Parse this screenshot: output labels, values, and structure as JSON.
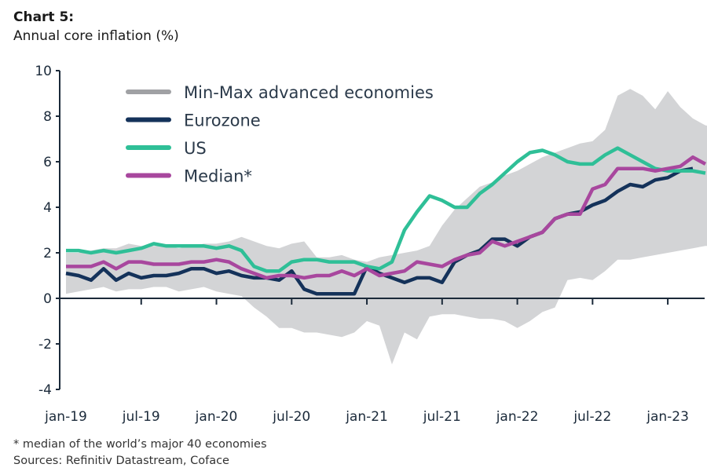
{
  "header": {
    "title": "Chart 5:",
    "subtitle": "Annual core inflation (%)"
  },
  "footer": {
    "note": "* median of the world’s major 40 economies",
    "sources": "Sources: Refinitiv Datastream, Coface"
  },
  "colors": {
    "band": "#d3d4d6",
    "eurozone": "#14325a",
    "us": "#2fbf97",
    "median": "#a8479e",
    "axis": "#1b2a3a"
  },
  "chart_data": {
    "type": "line",
    "title": "Annual core inflation (%)",
    "xlabel": "",
    "ylabel": "",
    "ylim": [
      -4,
      10
    ],
    "yticks": [
      10,
      8,
      6,
      4,
      2,
      0,
      -2,
      -4
    ],
    "xtick_labels": [
      "jan-19",
      "jul-19",
      "jan-20",
      "jul-20",
      "jan-21",
      "jul-21",
      "jan-22",
      "jul-22",
      "jan-23"
    ],
    "x_start": "jan-19",
    "frequency": "monthly",
    "legend": [
      "Min-Max advanced economies",
      "Eurozone",
      "US",
      "Median*"
    ],
    "legend_position": "top-left",
    "band": {
      "name": "Min-Max advanced economies",
      "max": [
        2.0,
        2.0,
        2.1,
        2.2,
        2.2,
        2.4,
        2.3,
        2.3,
        2.3,
        2.2,
        2.3,
        2.4,
        2.4,
        2.5,
        2.7,
        2.5,
        2.3,
        2.2,
        2.4,
        2.5,
        1.8,
        1.8,
        1.9,
        1.7,
        1.6,
        1.8,
        1.9,
        2.0,
        2.1,
        2.3,
        3.2,
        3.9,
        4.4,
        4.9,
        5.1,
        5.4,
        5.6,
        5.9,
        6.2,
        6.4,
        6.6,
        6.8,
        6.9,
        7.4,
        8.9,
        9.2,
        8.9,
        8.3,
        9.1,
        8.4,
        7.9,
        7.6,
        7.5
      ],
      "min": [
        0.2,
        0.3,
        0.4,
        0.5,
        0.3,
        0.4,
        0.4,
        0.5,
        0.5,
        0.3,
        0.4,
        0.5,
        0.3,
        0.2,
        0.1,
        -0.4,
        -0.8,
        -1.3,
        -1.3,
        -1.5,
        -1.5,
        -1.6,
        -1.7,
        -1.5,
        -1.0,
        -1.2,
        -2.9,
        -1.5,
        -1.8,
        -0.8,
        -0.7,
        -0.7,
        -0.8,
        -0.9,
        -0.9,
        -1.0,
        -1.3,
        -1.0,
        -0.6,
        -0.4,
        0.8,
        0.9,
        0.8,
        1.2,
        1.7,
        1.7,
        1.8,
        1.9,
        2.0,
        2.1,
        2.2,
        2.3,
        2.3
      ]
    },
    "series": [
      {
        "name": "Eurozone",
        "values": [
          1.1,
          1.0,
          0.8,
          1.3,
          0.8,
          1.1,
          0.9,
          1.0,
          1.0,
          1.1,
          1.3,
          1.3,
          1.1,
          1.2,
          1.0,
          0.9,
          0.9,
          0.8,
          1.2,
          0.4,
          0.2,
          0.2,
          0.2,
          0.2,
          1.4,
          1.1,
          0.9,
          0.7,
          0.9,
          0.9,
          0.7,
          1.6,
          1.9,
          2.1,
          2.6,
          2.6,
          2.3,
          2.7,
          2.9,
          3.5,
          3.7,
          3.8,
          4.1,
          4.3,
          4.7,
          5.0,
          4.9,
          5.2,
          5.3,
          5.6,
          5.7
        ]
      },
      {
        "name": "US",
        "values": [
          2.1,
          2.1,
          2.0,
          2.1,
          2.0,
          2.1,
          2.2,
          2.4,
          2.3,
          2.3,
          2.3,
          2.3,
          2.2,
          2.3,
          2.1,
          1.4,
          1.2,
          1.2,
          1.6,
          1.7,
          1.7,
          1.6,
          1.6,
          1.6,
          1.4,
          1.3,
          1.6,
          3.0,
          3.8,
          4.5,
          4.3,
          4.0,
          4.0,
          4.6,
          5.0,
          5.5,
          6.0,
          6.4,
          6.5,
          6.3,
          6.0,
          5.9,
          5.9,
          6.3,
          6.6,
          6.3,
          6.0,
          5.7,
          5.6,
          5.6,
          5.6,
          5.5
        ]
      },
      {
        "name": "Median*",
        "values": [
          1.4,
          1.4,
          1.4,
          1.6,
          1.3,
          1.6,
          1.6,
          1.5,
          1.5,
          1.5,
          1.6,
          1.6,
          1.7,
          1.6,
          1.3,
          1.1,
          0.9,
          1.0,
          1.0,
          0.9,
          1.0,
          1.0,
          1.2,
          1.0,
          1.3,
          1.0,
          1.1,
          1.2,
          1.6,
          1.5,
          1.4,
          1.7,
          1.9,
          2.0,
          2.5,
          2.3,
          2.5,
          2.7,
          2.9,
          3.5,
          3.7,
          3.7,
          4.8,
          5.0,
          5.7,
          5.7,
          5.7,
          5.6,
          5.7,
          5.8,
          6.2,
          5.9
        ]
      }
    ]
  }
}
